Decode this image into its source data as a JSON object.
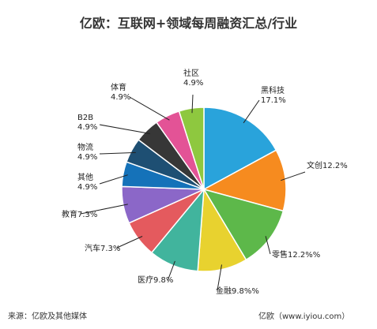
{
  "chart_data": {
    "type": "pie",
    "title": "亿欧：互联网+领域每周融资汇总/行业",
    "slices": [
      {
        "label": "黑科技",
        "value": 17.1,
        "value_text": "17.1%",
        "color": "#29a3db"
      },
      {
        "label": "文创",
        "value": 12.2,
        "value_text": "12.2%",
        "color": "#f68b1f"
      },
      {
        "label": "零售",
        "value": 12.2,
        "value_text": "12.2%%",
        "color": "#5db84a"
      },
      {
        "label": "金融",
        "value": 9.8,
        "value_text": "9.8%%",
        "color": "#e8d22f"
      },
      {
        "label": "医疗",
        "value": 9.8,
        "value_text": "9.8%",
        "color": "#41b49d"
      },
      {
        "label": "汽车",
        "value": 7.3,
        "value_text": "7.3%",
        "color": "#e45a5e"
      },
      {
        "label": "教育",
        "value": 7.3,
        "value_text": "7.3%",
        "color": "#8b67c8"
      },
      {
        "label": "其他",
        "value": 4.9,
        "value_text": "4.9%",
        "color": "#1572b9"
      },
      {
        "label": "物流",
        "value": 4.9,
        "value_text": "4.9%",
        "color": "#1e4f73"
      },
      {
        "label": "B2B",
        "value": 4.9,
        "value_text": "4.9%",
        "color": "#373737"
      },
      {
        "label": "体育",
        "value": 4.9,
        "value_text": "4.9%",
        "color": "#e35396"
      },
      {
        "label": "社区",
        "value": 4.9,
        "value_text": "4.9%",
        "color": "#8ec83f"
      }
    ]
  },
  "footer": {
    "source": "来源：亿欧及其他媒体",
    "site": "亿欧（www.iyiou.com）"
  }
}
